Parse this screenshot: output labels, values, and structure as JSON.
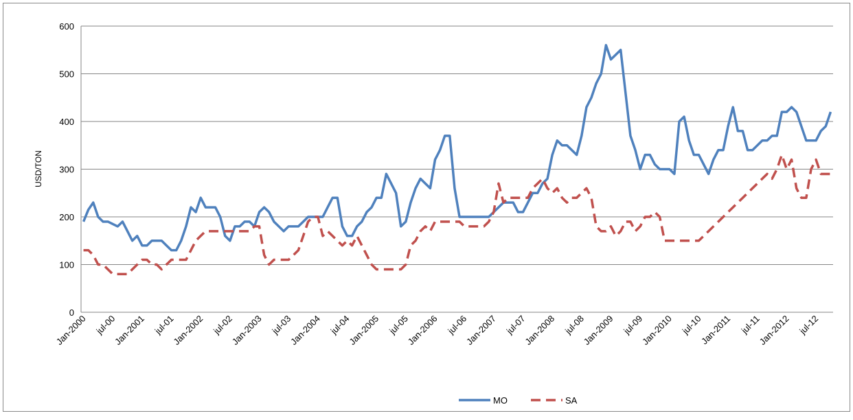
{
  "chart_data": {
    "type": "line",
    "y_label": "USD/TON",
    "categories": [
      "Jan-2000",
      null,
      null,
      null,
      null,
      null,
      "jul-00",
      null,
      null,
      null,
      null,
      null,
      "Jan-2001",
      null,
      null,
      null,
      null,
      null,
      "jul-01",
      null,
      null,
      null,
      null,
      null,
      "Jan-2002",
      null,
      null,
      null,
      null,
      null,
      "jul-02",
      null,
      null,
      null,
      null,
      null,
      "Jan-2003",
      null,
      null,
      null,
      null,
      null,
      "jul-03",
      null,
      null,
      null,
      null,
      null,
      "Jan-2004",
      null,
      null,
      null,
      null,
      null,
      "jul-04",
      null,
      null,
      null,
      null,
      null,
      "Jan-2005",
      null,
      null,
      null,
      null,
      null,
      "jul-05",
      null,
      null,
      null,
      null,
      null,
      "Jan-2006",
      null,
      null,
      null,
      null,
      null,
      "jul-06",
      null,
      null,
      null,
      null,
      null,
      "Jan-2007",
      null,
      null,
      null,
      null,
      null,
      "jul-07",
      null,
      null,
      null,
      null,
      null,
      "Jan-2008",
      null,
      null,
      null,
      null,
      null,
      "jul-08",
      null,
      null,
      null,
      null,
      null,
      "Jan-2009",
      null,
      null,
      null,
      null,
      null,
      "jul-09",
      null,
      null,
      null,
      null,
      null,
      "Jan-2010",
      null,
      null,
      null,
      null,
      null,
      "jul-10",
      null,
      null,
      null,
      null,
      null,
      "Jan-2011",
      null,
      null,
      null,
      null,
      null,
      "jul-11",
      null,
      null,
      null,
      null,
      null,
      "Jan-2012",
      null,
      null,
      null,
      null,
      null,
      "jul-12",
      null,
      null,
      null
    ],
    "series": [
      {
        "name": "MO",
        "color": "#4f81bd",
        "line_style": "solid",
        "values": [
          190,
          215,
          230,
          200,
          190,
          190,
          185,
          180,
          190,
          170,
          150,
          160,
          140,
          140,
          150,
          150,
          150,
          140,
          130,
          130,
          150,
          180,
          220,
          210,
          240,
          220,
          220,
          220,
          200,
          160,
          150,
          180,
          180,
          190,
          190,
          180,
          210,
          220,
          210,
          190,
          180,
          170,
          180,
          180,
          180,
          190,
          200,
          200,
          200,
          200,
          220,
          240,
          240,
          180,
          160,
          160,
          180,
          190,
          210,
          220,
          240,
          240,
          290,
          270,
          250,
          180,
          190,
          230,
          260,
          280,
          270,
          260,
          320,
          340,
          370,
          370,
          260,
          200,
          200,
          200,
          200,
          200,
          200,
          200,
          210,
          220,
          230,
          230,
          230,
          210,
          210,
          230,
          250,
          250,
          270,
          280,
          330,
          360,
          350,
          350,
          340,
          330,
          370,
          430,
          450,
          480,
          500,
          560,
          530,
          540,
          550,
          460,
          370,
          340,
          300,
          330,
          330,
          310,
          300,
          300,
          300,
          290,
          400,
          410,
          360,
          330,
          330,
          310,
          290,
          320,
          340,
          340,
          390,
          430,
          380,
          380,
          340,
          340,
          350,
          360,
          360,
          370,
          370,
          420,
          420,
          430,
          420,
          390,
          360,
          360,
          360,
          380,
          390,
          420
        ]
      },
      {
        "name": "SA",
        "color": "#c0504d",
        "line_style": "dashed",
        "values": [
          130,
          130,
          120,
          100,
          100,
          90,
          80,
          80,
          80,
          80,
          90,
          100,
          110,
          110,
          100,
          100,
          90,
          100,
          110,
          110,
          110,
          110,
          130,
          150,
          160,
          170,
          170,
          170,
          170,
          170,
          170,
          170,
          170,
          170,
          170,
          180,
          180,
          120,
          100,
          110,
          110,
          110,
          110,
          120,
          130,
          160,
          190,
          200,
          200,
          160,
          170,
          160,
          150,
          140,
          150,
          140,
          160,
          140,
          120,
          100,
          90,
          90,
          90,
          90,
          90,
          90,
          100,
          140,
          150,
          170,
          180,
          170,
          190,
          190,
          190,
          190,
          190,
          190,
          180,
          180,
          180,
          180,
          180,
          190,
          210,
          270,
          230,
          240,
          240,
          240,
          240,
          240,
          260,
          270,
          280,
          260,
          250,
          260,
          240,
          230,
          240,
          240,
          250,
          260,
          240,
          180,
          170,
          170,
          180,
          160,
          170,
          190,
          190,
          170,
          180,
          200,
          200,
          210,
          200,
          150,
          150,
          150,
          150,
          150,
          150,
          150,
          150,
          160,
          170,
          180,
          190,
          200,
          210,
          220,
          230,
          240,
          250,
          260,
          270,
          280,
          290,
          280,
          300,
          330,
          300,
          320,
          260,
          240,
          240,
          300,
          320,
          290,
          290,
          290
        ]
      }
    ],
    "ylim": [
      0,
      600
    ],
    "yticks": [
      0,
      100,
      200,
      300,
      400,
      500,
      600
    ],
    "grid": true,
    "legend": "bottom"
  }
}
